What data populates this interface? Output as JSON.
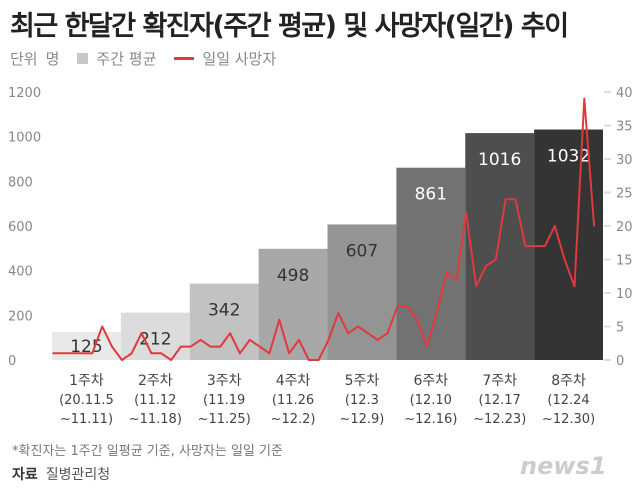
{
  "title": "최근 한달간 확진자(주간 평균) 및 사망자(일간) 추이",
  "legend": {
    "unit_label": "단위",
    "unit": "명",
    "bar_series": "주간 평균",
    "line_series": "일일 사망자"
  },
  "footnote": "*확진자는 1주간 일평균 기준, 사망자는 일일 기준",
  "source": {
    "label": "자료",
    "value": "질병관리청"
  },
  "logo": "news1",
  "chart_data": {
    "type": "bar+line",
    "categories": [
      [
        "1주차",
        "(20.11.5",
        "~11.11)"
      ],
      [
        "2주차",
        "(11.12",
        "~11.18)"
      ],
      [
        "3주차",
        "(11.19",
        "~11.25)"
      ],
      [
        "4주차",
        "(11.26",
        "~12.2)"
      ],
      [
        "5주차",
        "(12.3",
        "~12.9)"
      ],
      [
        "6주차",
        "(12.10",
        "~12.16)"
      ],
      [
        "7주차",
        "(12.17",
        "~12.23)"
      ],
      [
        "8주차",
        "(12.24",
        "~12.30)"
      ]
    ],
    "bar_values": [
      125,
      212,
      342,
      498,
      607,
      861,
      1016,
      1032
    ],
    "bar_colors": [
      "#e9e9e9",
      "#dcdcdc",
      "#c2c2c2",
      "#a8a8a8",
      "#949494",
      "#727272",
      "#4e4e4e",
      "#343434"
    ],
    "line_values": [
      1,
      1,
      1,
      1,
      1,
      5,
      2,
      0,
      1,
      4,
      1,
      1,
      0,
      2,
      2,
      3,
      2,
      2,
      4,
      1,
      3,
      2,
      1,
      6,
      1,
      3,
      0,
      0,
      3,
      7,
      4,
      5,
      4,
      3,
      4,
      8,
      8,
      6,
      2,
      7,
      13,
      12,
      22,
      11,
      14,
      15,
      24,
      24,
      17,
      17,
      17,
      20,
      15,
      11,
      39,
      20
    ],
    "line_color": "#e0393e",
    "left_axis": {
      "range": [
        0,
        1200
      ],
      "ticks": [
        "0",
        "200",
        "400",
        "600",
        "800",
        "1000",
        "1200"
      ]
    },
    "right_axis": {
      "range": [
        0,
        40
      ],
      "ticks": [
        "0",
        "5",
        "10",
        "15",
        "20",
        "25",
        "30",
        "35",
        "40"
      ]
    }
  }
}
